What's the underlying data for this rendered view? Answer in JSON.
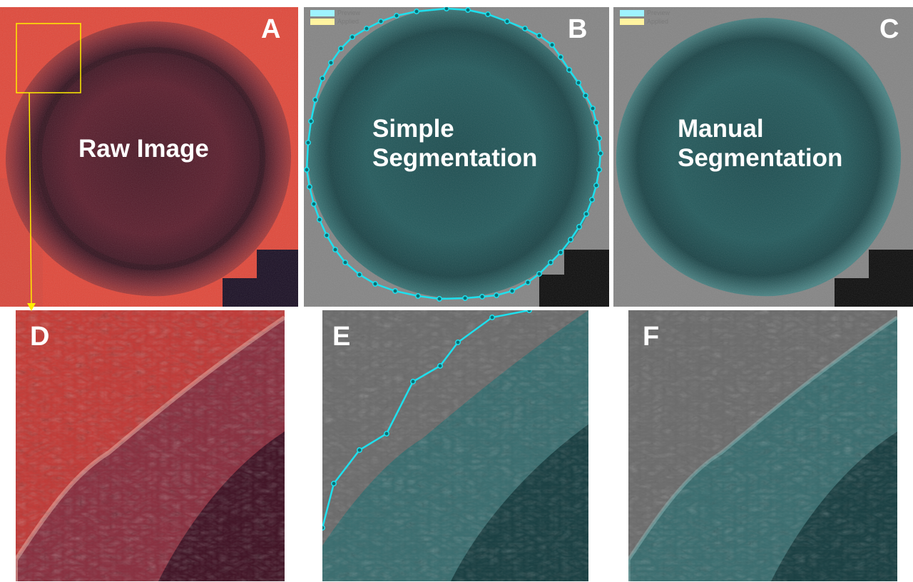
{
  "colors": {
    "raw_background": "#e0483a",
    "raw_colony": "#6e2433",
    "raw_core": "#4a1826",
    "gray_background": "#858585",
    "teal_colony": "#2c6466",
    "teal_core": "#1d4d50",
    "contour": "#1ee0ee",
    "zoom_marker": "#ffee00",
    "preview_swatch": "#9ff3ff",
    "applied_swatch": "#fff3a0"
  },
  "panels": {
    "A": {
      "letter": "A",
      "caption": "Raw Image"
    },
    "B": {
      "letter": "B",
      "caption_line1": "Simple",
      "caption_line2": "Segmentation"
    },
    "C": {
      "letter": "C",
      "caption_line1": "Manual",
      "caption_line2": "Segmentation"
    },
    "D": {
      "letter": "D"
    },
    "E": {
      "letter": "E"
    },
    "F": {
      "letter": "F"
    }
  },
  "legend": {
    "preview_label": "Preview",
    "applied_label": "Applied"
  }
}
